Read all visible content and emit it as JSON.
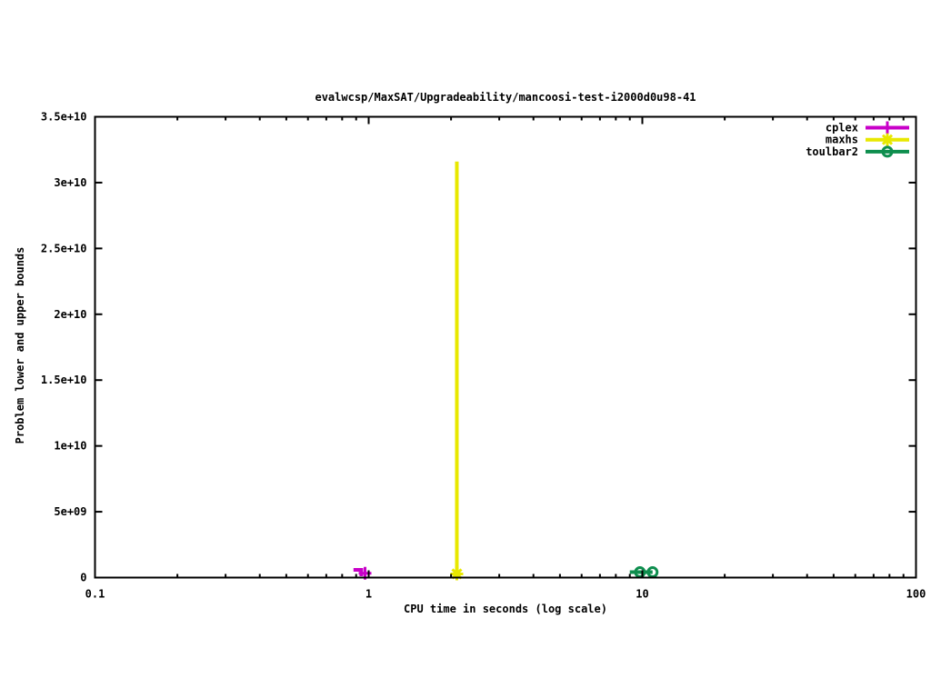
{
  "chart_data": {
    "type": "line",
    "title": "evalwcsp/MaxSAT/Upgradeability/mancoosi-test-i2000d0u98-41",
    "xlabel": "CPU time in seconds (log scale)",
    "ylabel": "Problem lower and upper bounds",
    "x_scale": "log",
    "xlim": [
      0.1,
      100
    ],
    "ylim": [
      0,
      35000000000.0
    ],
    "grid": false,
    "background_color": "#ffffff",
    "axis_color": "#000000",
    "x_ticks": [
      {
        "v": 0.1,
        "label": "0.1"
      },
      {
        "v": 1,
        "label": "1"
      },
      {
        "v": 10,
        "label": "10"
      },
      {
        "v": 100,
        "label": "100"
      }
    ],
    "y_ticks": [
      {
        "v": 0,
        "label": "0"
      },
      {
        "v": 5000000000.0,
        "label": "5e+09"
      },
      {
        "v": 10000000000.0,
        "label": "1e+10"
      },
      {
        "v": 15000000000.0,
        "label": "1.5e+10"
      },
      {
        "v": 20000000000.0,
        "label": "2e+10"
      },
      {
        "v": 25000000000.0,
        "label": "2.5e+10"
      },
      {
        "v": 30000000000.0,
        "label": "3e+10"
      },
      {
        "v": 35000000000.0,
        "label": "3.5e+10"
      }
    ],
    "legend": {
      "position": "top-right",
      "entries": [
        "cplex",
        "maxhs",
        "toulbar2"
      ]
    },
    "series": [
      {
        "name": "cplex",
        "color": "#c800c8",
        "marker": "plus",
        "line_points": [
          [
            0.88,
            590000000.0
          ],
          [
            0.94,
            590000000.0
          ],
          [
            0.94,
            100000000.0
          ]
        ],
        "marker_points": [
          [
            0.97,
            330000000.0
          ]
        ]
      },
      {
        "name": "maxhs",
        "color": "#e8e800",
        "marker": "asterisk",
        "line_points": [
          [
            2.1,
            31600000000.0
          ],
          [
            2.1,
            280000000.0
          ]
        ],
        "marker_points": [
          [
            2.1,
            280000000.0
          ]
        ]
      },
      {
        "name": "toulbar2",
        "color": "#0e8e4e",
        "marker": "circle",
        "line_points": [
          [
            9.0,
            410000000.0
          ],
          [
            10.9,
            410000000.0
          ]
        ],
        "marker_points": [
          [
            9.8,
            410000000.0
          ],
          [
            10.9,
            410000000.0
          ]
        ]
      }
    ]
  }
}
